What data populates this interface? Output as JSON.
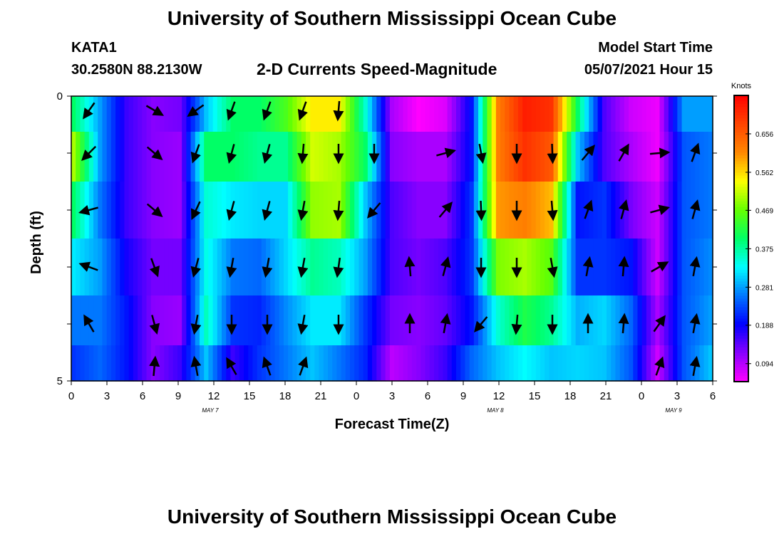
{
  "page": {
    "title_top": "University of Southern Mississippi Ocean Cube",
    "title_bottom": "University of Southern Mississippi Ocean Cube",
    "station": "KATA1",
    "location": "30.2580N  88.2130W",
    "product": "2-D Currents Speed-Magnitude",
    "model_start_label": "Model Start Time",
    "model_start_value": "05/07/2021 Hour 15"
  },
  "chart_data": {
    "type": "heatmap",
    "xlabel": "Forecast Time(Z)",
    "ylabel": "Depth (ft)",
    "x_tick_labels": [
      "0",
      "3",
      "6",
      "9",
      "12",
      "15",
      "18",
      "21",
      "0",
      "3",
      "6",
      "9",
      "12",
      "15",
      "18",
      "21",
      "0",
      "3",
      "6"
    ],
    "day_labels": [
      {
        "text": "MAY 7",
        "hour": 11.7
      },
      {
        "text": "MAY 8",
        "hour": 35.7
      },
      {
        "text": "MAY 9",
        "hour": 50.7
      }
    ],
    "x_range_hours": [
      0,
      54
    ],
    "y_tick_labels": [
      "0",
      "5"
    ],
    "y_range_ft": [
      0,
      5
    ],
    "depth_rows_ft": [
      0.25,
      1.0,
      2.0,
      3.0,
      4.0,
      4.75
    ],
    "colorbar": {
      "title": "Knots",
      "range": [
        0.05,
        0.75
      ],
      "tick_values": [
        0.094,
        0.188,
        0.281,
        0.375,
        0.469,
        0.562,
        0.656
      ],
      "tick_labels": [
        "0.094",
        "0.188",
        "0.281",
        "0.375",
        "0.469",
        "0.562",
        "0.656"
      ],
      "colors": [
        "#ff00ff",
        "#8800ff",
        "#0000ff",
        "#0077ff",
        "#00ffff",
        "#00ff66",
        "#66ff00",
        "#ffff00",
        "#ff8800",
        "#ff4400",
        "#ff0000"
      ]
    },
    "speed_knots": [
      [
        0.4,
        0.28,
        0.16,
        0.12,
        0.13,
        0.3,
        0.4,
        0.4,
        0.45,
        0.55,
        0.55,
        0.35,
        0.1,
        0.05,
        0.07,
        0.2,
        0.62,
        0.72,
        0.7,
        0.4,
        0.15,
        0.08,
        0.06,
        0.28,
        0.28
      ],
      [
        0.5,
        0.28,
        0.16,
        0.12,
        0.11,
        0.4,
        0.4,
        0.38,
        0.38,
        0.52,
        0.5,
        0.4,
        0.12,
        0.1,
        0.1,
        0.2,
        0.62,
        0.7,
        0.66,
        0.3,
        0.15,
        0.1,
        0.06,
        0.24,
        0.26
      ],
      [
        0.4,
        0.26,
        0.16,
        0.12,
        0.11,
        0.35,
        0.32,
        0.31,
        0.31,
        0.49,
        0.5,
        0.3,
        0.15,
        0.12,
        0.12,
        0.22,
        0.6,
        0.62,
        0.58,
        0.2,
        0.22,
        0.13,
        0.08,
        0.24,
        0.26
      ],
      [
        0.32,
        0.28,
        0.18,
        0.13,
        0.13,
        0.34,
        0.26,
        0.25,
        0.31,
        0.38,
        0.36,
        0.28,
        0.15,
        0.13,
        0.15,
        0.22,
        0.48,
        0.5,
        0.46,
        0.22,
        0.22,
        0.2,
        0.08,
        0.24,
        0.27
      ],
      [
        0.26,
        0.26,
        0.2,
        0.12,
        0.11,
        0.36,
        0.22,
        0.21,
        0.27,
        0.32,
        0.32,
        0.22,
        0.13,
        0.12,
        0.14,
        0.2,
        0.35,
        0.42,
        0.38,
        0.29,
        0.31,
        0.25,
        0.1,
        0.24,
        0.28
      ],
      [
        0.22,
        0.25,
        0.2,
        0.12,
        0.16,
        0.3,
        0.16,
        0.22,
        0.26,
        0.3,
        0.26,
        0.21,
        0.09,
        0.12,
        0.16,
        0.25,
        0.3,
        0.33,
        0.3,
        0.31,
        0.3,
        0.24,
        0.08,
        0.24,
        0.3
      ]
    ],
    "vector_hours": [
      1.5,
      7,
      10.5,
      13.5,
      16.5,
      19.5,
      22.5,
      25.5,
      28.5,
      31.5,
      34.5,
      37.5,
      40.5,
      43.5,
      46.5,
      49.5,
      52.5
    ],
    "vectors_deg": [
      [
        215,
        120,
        235,
        200,
        200,
        200,
        185,
        null,
        null,
        null,
        null,
        null,
        null,
        null,
        null,
        null,
        null
      ],
      [
        225,
        130,
        200,
        195,
        195,
        185,
        180,
        180,
        null,
        75,
        170,
        180,
        178,
        40,
        30,
        85,
        20
      ],
      [
        255,
        130,
        205,
        195,
        195,
        190,
        185,
        220,
        null,
        40,
        178,
        180,
        175,
        20,
        15,
        75,
        15
      ],
      [
        290,
        160,
        195,
        190,
        190,
        190,
        188,
        null,
        355,
        15,
        180,
        180,
        170,
        10,
        5,
        60,
        10
      ],
      [
        330,
        165,
        190,
        180,
        180,
        190,
        180,
        null,
        0,
        10,
        220,
        185,
        180,
        0,
        5,
        35,
        10
      ],
      [
        null,
        5,
        350,
        330,
        340,
        20,
        null,
        null,
        null,
        null,
        null,
        null,
        null,
        null,
        null,
        20,
        10
      ]
    ]
  }
}
